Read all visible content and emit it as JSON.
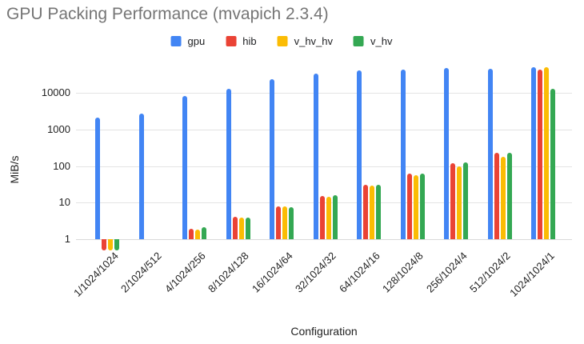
{
  "title": "GPU Packing Performance (mvapich 2.3.4)",
  "legend": [
    {
      "label": "gpu",
      "color": "#4285F4"
    },
    {
      "label": "hib",
      "color": "#EA4335"
    },
    {
      "label": "v_hv_hv",
      "color": "#FBBC04"
    },
    {
      "label": "v_hv",
      "color": "#34A853"
    }
  ],
  "axes": {
    "y_title": "MiB/s",
    "x_title": "Configuration",
    "y_ticks": [
      {
        "label": "1",
        "value": 1
      },
      {
        "label": "10",
        "value": 10
      },
      {
        "label": "100",
        "value": 100
      },
      {
        "label": "1000",
        "value": 1000
      },
      {
        "label": "10000",
        "value": 10000
      }
    ]
  },
  "chart_data": {
    "type": "bar",
    "title": "GPU Packing Performance (mvapich 2.3.4)",
    "xlabel": "Configuration",
    "ylabel": "MiB/s",
    "y_scale": "log",
    "ylim": [
      0.49,
      52000
    ],
    "grid": true,
    "legend_position": "top",
    "categories": [
      "1/1024/1024",
      "2/1024/512",
      "4/1024/256",
      "8/1024/128",
      "16/1024/64",
      "32/1024/32",
      "64/1024/16",
      "128/1024/8",
      "256/1024/4",
      "512/1024/2",
      "1024/1024/1"
    ],
    "series": [
      {
        "name": "gpu",
        "color": "#4285F4",
        "values": [
          2100,
          2700,
          8200,
          13000,
          23000,
          33000,
          40000,
          44000,
          47000,
          45000,
          50000
        ]
      },
      {
        "name": "hib",
        "color": "#EA4335",
        "values": [
          0.5,
          null,
          1.9,
          4.0,
          7.8,
          15,
          30,
          62,
          120,
          235,
          43000
        ]
      },
      {
        "name": "v_hv_hv",
        "color": "#FBBC04",
        "values": [
          0.5,
          null,
          1.8,
          3.8,
          7.8,
          14.5,
          29,
          55,
          100,
          175,
          49000
        ]
      },
      {
        "name": "v_hv",
        "color": "#34A853",
        "values": [
          0.5,
          null,
          2.1,
          3.9,
          7.5,
          16,
          31,
          63,
          125,
          225,
          12800
        ]
      }
    ]
  }
}
